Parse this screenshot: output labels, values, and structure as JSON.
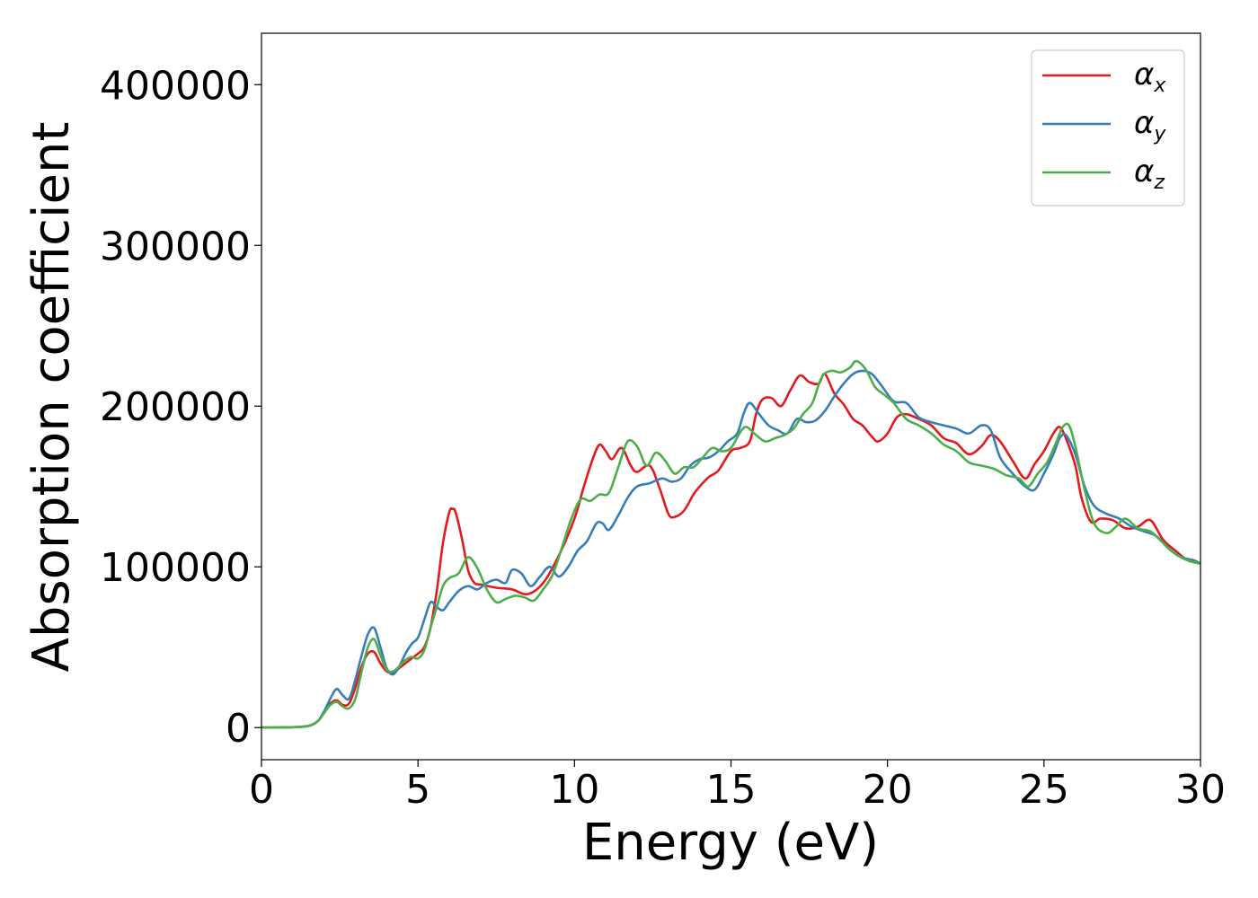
{
  "chart_data": {
    "type": "line",
    "title": "",
    "xlabel": "Energy (eV)",
    "ylabel": "Absorption coefficient",
    "xlim": [
      0,
      30
    ],
    "ylim": [
      -20000,
      432000
    ],
    "xticks": [
      0,
      5,
      10,
      15,
      20,
      25,
      30
    ],
    "xtick_labels": [
      "0",
      "5",
      "10",
      "15",
      "20",
      "25",
      "30"
    ],
    "yticks": [
      0,
      100000,
      200000,
      300000,
      400000
    ],
    "ytick_labels": [
      "0",
      "100000",
      "200000",
      "300000",
      "400000"
    ],
    "grid": false,
    "legend_position": "top-right",
    "series": [
      {
        "name": "α_x",
        "legend_symbol": "α",
        "legend_subscript": "x",
        "color": "#e41a1c",
        "x": [
          0,
          1,
          1.5,
          1.8,
          2.0,
          2.2,
          2.4,
          2.6,
          2.8,
          3.0,
          3.2,
          3.4,
          3.6,
          3.8,
          4.0,
          4.2,
          4.4,
          4.6,
          4.8,
          5.0,
          5.2,
          5.4,
          5.6,
          5.8,
          6.0,
          6.1,
          6.2,
          6.4,
          6.6,
          6.8,
          7.0,
          7.5,
          8.0,
          8.5,
          9.0,
          9.5,
          10.0,
          10.3,
          10.6,
          10.8,
          11.0,
          11.2,
          11.5,
          11.8,
          12.0,
          12.4,
          12.7,
          13.0,
          13.2,
          13.5,
          13.8,
          14.0,
          14.3,
          14.6,
          15.0,
          15.3,
          15.6,
          15.8,
          16.0,
          16.3,
          16.6,
          16.9,
          17.2,
          17.5,
          17.8,
          18.0,
          18.3,
          18.6,
          18.9,
          19.2,
          19.5,
          19.7,
          20.0,
          20.3,
          20.6,
          21.0,
          21.4,
          21.8,
          22.2,
          22.6,
          23.0,
          23.3,
          23.6,
          24.0,
          24.4,
          24.7,
          25.0,
          25.3,
          25.5,
          25.7,
          26.0,
          26.2,
          26.5,
          26.8,
          27.2,
          27.6,
          28.0,
          28.4,
          28.8,
          29.2,
          29.6,
          30.0
        ],
        "y": [
          0,
          200,
          1000,
          4000,
          10000,
          15000,
          17000,
          14000,
          15000,
          25000,
          38000,
          46000,
          47000,
          40000,
          35000,
          34000,
          37000,
          40000,
          43000,
          46000,
          50000,
          62000,
          85000,
          115000,
          134000,
          136000,
          134000,
          118000,
          98000,
          90000,
          89000,
          87000,
          86000,
          83000,
          90000,
          107000,
          130000,
          150000,
          168000,
          176000,
          172000,
          167000,
          174000,
          163000,
          159000,
          163000,
          150000,
          133000,
          131000,
          135000,
          145000,
          150000,
          156000,
          160000,
          172000,
          174000,
          178000,
          195000,
          204000,
          205000,
          200000,
          210000,
          219000,
          215000,
          214000,
          220000,
          208000,
          201000,
          192000,
          188000,
          181000,
          178000,
          183000,
          193000,
          195000,
          192000,
          188000,
          180000,
          177000,
          170000,
          175000,
          182000,
          178000,
          166000,
          155000,
          164000,
          172000,
          183000,
          187000,
          180000,
          163000,
          143000,
          128000,
          130000,
          129000,
          124000,
          125000,
          129000,
          117000,
          110000,
          104000,
          102000
        ]
      },
      {
        "name": "α_y",
        "legend_symbol": "α",
        "legend_subscript": "y",
        "color": "#377eb8",
        "x": [
          0,
          1,
          1.5,
          1.8,
          2.0,
          2.2,
          2.4,
          2.6,
          2.8,
          3.0,
          3.2,
          3.4,
          3.6,
          3.8,
          4.0,
          4.2,
          4.4,
          4.6,
          4.8,
          5.0,
          5.2,
          5.4,
          5.6,
          5.8,
          6.0,
          6.3,
          6.6,
          6.9,
          7.2,
          7.5,
          7.8,
          8.0,
          8.3,
          8.6,
          8.9,
          9.2,
          9.5,
          9.8,
          10.1,
          10.4,
          10.7,
          10.9,
          11.1,
          11.4,
          11.7,
          12.0,
          12.4,
          12.8,
          13.1,
          13.4,
          13.7,
          14.0,
          14.3,
          14.6,
          14.9,
          15.2,
          15.4,
          15.6,
          15.9,
          16.2,
          16.5,
          16.8,
          17.1,
          17.4,
          17.7,
          18.0,
          18.3,
          18.6,
          18.9,
          19.2,
          19.5,
          19.8,
          20.2,
          20.6,
          21.0,
          21.4,
          21.8,
          22.2,
          22.6,
          23.0,
          23.3,
          23.6,
          24.0,
          24.4,
          24.7,
          25.0,
          25.3,
          25.5,
          25.7,
          26.0,
          26.3,
          26.6,
          27.0,
          27.4,
          27.8,
          28.2,
          28.6,
          29.0,
          29.4,
          29.8,
          30.0
        ],
        "y": [
          0,
          200,
          1000,
          4000,
          10000,
          18000,
          24000,
          20000,
          18000,
          30000,
          45000,
          58000,
          62000,
          50000,
          37000,
          33000,
          38000,
          46000,
          52000,
          56000,
          67000,
          78000,
          75000,
          73000,
          78000,
          85000,
          88000,
          86000,
          90000,
          92000,
          90000,
          98000,
          96000,
          88000,
          94000,
          100000,
          94000,
          100000,
          110000,
          116000,
          127000,
          127000,
          123000,
          132000,
          143000,
          150000,
          152000,
          155000,
          153000,
          155000,
          163000,
          167000,
          168000,
          172000,
          178000,
          183000,
          195000,
          202000,
          195000,
          188000,
          185000,
          183000,
          192000,
          190000,
          191000,
          197000,
          206000,
          214000,
          220000,
          222000,
          220000,
          213000,
          203000,
          202000,
          193000,
          190000,
          188000,
          186000,
          183000,
          188000,
          185000,
          168000,
          158000,
          150000,
          148000,
          158000,
          170000,
          180000,
          182000,
          170000,
          150000,
          138000,
          133000,
          130000,
          125000,
          122000,
          119000,
          111000,
          106000,
          104000,
          102000
        ]
      },
      {
        "name": "α_z",
        "legend_symbol": "α",
        "legend_subscript": "z",
        "color": "#4daf4a",
        "x": [
          0,
          1,
          1.5,
          1.8,
          2.0,
          2.2,
          2.4,
          2.6,
          2.8,
          3.0,
          3.2,
          3.4,
          3.6,
          3.8,
          4.0,
          4.2,
          4.4,
          4.6,
          4.8,
          5.0,
          5.2,
          5.4,
          5.6,
          5.8,
          6.0,
          6.3,
          6.6,
          6.9,
          7.2,
          7.5,
          7.8,
          8.1,
          8.4,
          8.7,
          9.0,
          9.3,
          9.6,
          9.9,
          10.2,
          10.5,
          10.8,
          11.1,
          11.4,
          11.7,
          12.0,
          12.3,
          12.6,
          12.9,
          13.2,
          13.5,
          13.8,
          14.1,
          14.4,
          14.7,
          15.0,
          15.3,
          15.5,
          15.8,
          16.1,
          16.4,
          16.7,
          17.0,
          17.3,
          17.6,
          17.9,
          18.2,
          18.5,
          18.8,
          19.0,
          19.3,
          19.6,
          19.9,
          20.2,
          20.6,
          21.0,
          21.4,
          21.8,
          22.2,
          22.6,
          23.0,
          23.4,
          23.8,
          24.2,
          24.5,
          24.8,
          25.1,
          25.4,
          25.6,
          25.8,
          26.0,
          26.3,
          26.6,
          27.0,
          27.3,
          27.6,
          28.0,
          28.4,
          28.8,
          29.2,
          29.6,
          30.0
        ],
        "y": [
          0,
          200,
          1000,
          4000,
          9000,
          14000,
          16000,
          13000,
          12000,
          18000,
          35000,
          50000,
          55000,
          45000,
          36000,
          35000,
          38000,
          42000,
          44000,
          43000,
          48000,
          62000,
          75000,
          88000,
          93000,
          96000,
          106000,
          99000,
          86000,
          78000,
          80000,
          82000,
          81000,
          79000,
          86000,
          95000,
          112000,
          130000,
          142000,
          141000,
          145000,
          146000,
          162000,
          178000,
          175000,
          163000,
          171000,
          166000,
          158000,
          162000,
          162000,
          168000,
          174000,
          172000,
          174000,
          184000,
          187000,
          182000,
          178000,
          180000,
          182000,
          186000,
          195000,
          202000,
          218000,
          222000,
          221000,
          224000,
          228000,
          223000,
          212000,
          207000,
          202000,
          192000,
          188000,
          183000,
          176000,
          172000,
          165000,
          163000,
          161000,
          157000,
          155000,
          150000,
          158000,
          165000,
          178000,
          187000,
          188000,
          175000,
          148000,
          127000,
          121000,
          125000,
          130000,
          124000,
          122000,
          115000,
          108000,
          104000,
          102000
        ]
      }
    ]
  }
}
